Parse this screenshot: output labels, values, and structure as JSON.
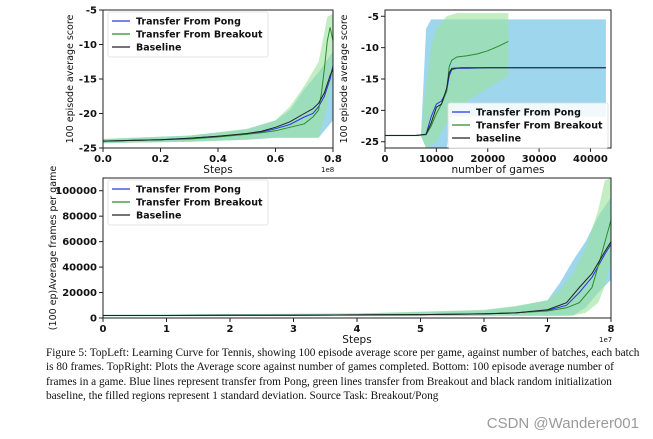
{
  "caption": "Figure 5: TopLeft: Learning Curve for Tennis, showing 100 episode average score per game, against number of batches, each batch is 80 frames. TopRight: Plots the Average score against number of games completed. Bottom: 100 episode average number of frames in a game. Blue lines represent transfer from Pong, green lines transfer from Breakout and black random initialization baseline, the filled regions represent 1 standard deviation. Source Task: Breakout/Pong",
  "watermark": "CSDN @Wanderer001",
  "colors": {
    "pong": "#2b36e0",
    "breakout": "#2c8a2c",
    "baseline": "#222222",
    "pong_band": "#7ec8e8",
    "breakout_band": "#9be39b"
  },
  "chart_data": [
    {
      "id": "top-left",
      "type": "line",
      "xlabel": "Steps",
      "ylabel": "100 episode average score",
      "x_multiplier": "1e8",
      "xlim": [
        0.0,
        0.8
      ],
      "ylim": [
        -25,
        -5
      ],
      "xticks": [
        "0.0",
        "0.2",
        "0.4",
        "0.6",
        "0.8"
      ],
      "yticks": [
        "-25",
        "-20",
        "-15",
        "-10",
        "-5"
      ],
      "legend_position": "top-left",
      "series": [
        {
          "name": "Transfer From Pong",
          "key": "pong",
          "x": [
            0.0,
            0.1,
            0.2,
            0.3,
            0.4,
            0.5,
            0.55,
            0.6,
            0.65,
            0.7,
            0.73,
            0.75,
            0.77,
            0.79,
            0.8
          ],
          "y": [
            -24.0,
            -23.9,
            -23.8,
            -23.6,
            -23.3,
            -23.0,
            -22.7,
            -22.2,
            -21.6,
            -20.5,
            -20.0,
            -19.0,
            -17.5,
            -15.0,
            -13.0
          ]
        },
        {
          "name": "Transfer From Breakout",
          "key": "breakout",
          "x": [
            0.0,
            0.1,
            0.2,
            0.3,
            0.4,
            0.5,
            0.55,
            0.6,
            0.65,
            0.7,
            0.73,
            0.75,
            0.76,
            0.77,
            0.78,
            0.79,
            0.8
          ],
          "y": [
            -24.0,
            -23.9,
            -23.8,
            -23.7,
            -23.4,
            -23.0,
            -22.8,
            -22.5,
            -22.0,
            -21.5,
            -20.5,
            -19.5,
            -17.0,
            -13.5,
            -9.5,
            -7.5,
            -9.5
          ]
        },
        {
          "name": "Baseline",
          "key": "baseline",
          "x": [
            0.0,
            0.1,
            0.2,
            0.3,
            0.4,
            0.5,
            0.55,
            0.6,
            0.65,
            0.7,
            0.73,
            0.75,
            0.77,
            0.79,
            0.8
          ],
          "y": [
            -24.0,
            -23.9,
            -23.8,
            -23.6,
            -23.3,
            -22.9,
            -22.6,
            -22.0,
            -21.2,
            -20.0,
            -19.3,
            -18.5,
            -17.0,
            -14.5,
            -13.5
          ]
        }
      ],
      "bands": [
        {
          "key": "pong",
          "x": [
            0.0,
            0.3,
            0.5,
            0.6,
            0.65,
            0.7,
            0.75,
            0.8
          ],
          "lower": [
            -24.3,
            -24.1,
            -23.8,
            -23.5,
            -23.5,
            -23.5,
            -23.5,
            -21.0
          ],
          "upper": [
            -23.7,
            -23.2,
            -22.3,
            -21.0,
            -19.5,
            -16.5,
            -14.0,
            -11.0
          ]
        },
        {
          "key": "breakout",
          "x": [
            0.0,
            0.3,
            0.5,
            0.6,
            0.65,
            0.7,
            0.75,
            0.78,
            0.8
          ],
          "lower": [
            -24.3,
            -24.1,
            -23.8,
            -23.5,
            -23.5,
            -23.5,
            -23.5,
            -19.0,
            -14.0
          ],
          "upper": [
            -23.7,
            -23.2,
            -22.2,
            -21.0,
            -19.0,
            -16.0,
            -12.5,
            -6.0,
            -5.5
          ]
        }
      ]
    },
    {
      "id": "top-right",
      "type": "line",
      "xlabel": "number of games",
      "ylabel": "100 episode average score",
      "xlim": [
        0,
        44000
      ],
      "ylim": [
        -26,
        -4
      ],
      "xticks": [
        "0",
        "10000",
        "20000",
        "30000",
        "40000"
      ],
      "yticks": [
        "-25",
        "-20",
        "-15",
        "-10",
        "-5"
      ],
      "legend_position": "bottom-right",
      "series": [
        {
          "name": "Transfer From Pong",
          "key": "pong",
          "x": [
            0,
            6000,
            8000,
            9000,
            10000,
            11000,
            12000,
            12500,
            13000,
            14000,
            16000,
            20000,
            30000,
            40000,
            43000
          ],
          "y": [
            -24.0,
            -24.0,
            -23.8,
            -21.0,
            -19.0,
            -18.5,
            -17.0,
            -14.5,
            -13.5,
            -13.3,
            -13.3,
            -13.2,
            -13.2,
            -13.2,
            -13.2
          ]
        },
        {
          "name": "Transfer From Breakout",
          "key": "breakout",
          "x": [
            0,
            6000,
            8000,
            9000,
            10000,
            11000,
            12000,
            12500,
            13000,
            14000,
            16000,
            18000,
            20000,
            22000,
            24000
          ],
          "y": [
            -24.0,
            -24.0,
            -23.9,
            -22.5,
            -20.5,
            -19.0,
            -17.0,
            -13.0,
            -12.0,
            -11.5,
            -11.3,
            -11.0,
            -10.5,
            -9.8,
            -9.0
          ]
        },
        {
          "name": "baseline",
          "key": "baseline",
          "x": [
            0,
            6000,
            8000,
            9000,
            10000,
            11000,
            12000,
            12500,
            13000,
            15000,
            20000,
            30000,
            40000,
            43000
          ],
          "y": [
            -24.0,
            -24.0,
            -23.8,
            -22.0,
            -19.5,
            -19.0,
            -16.5,
            -14.0,
            -13.3,
            -13.2,
            -13.2,
            -13.2,
            -13.2,
            -13.2
          ]
        }
      ],
      "bands": [
        {
          "key": "pong",
          "x": [
            0,
            7000,
            8000,
            9000,
            10000,
            11000,
            12000,
            13000,
            43000
          ],
          "lower": [
            -24.1,
            -24.1,
            -26.0,
            -26.0,
            -26.0,
            -26.0,
            -26.0,
            -21.0,
            -21.0
          ],
          "upper": [
            -23.9,
            -23.9,
            -7.0,
            -5.5,
            -5.5,
            -5.5,
            -5.5,
            -5.5,
            -5.5
          ]
        },
        {
          "key": "breakout",
          "x": [
            0,
            7000,
            8000,
            9000,
            10000,
            12000,
            14000,
            16000,
            18000,
            20000,
            22000,
            24000
          ],
          "lower": [
            -24.1,
            -24.1,
            -26.0,
            -25.5,
            -25.0,
            -22.0,
            -20.0,
            -18.5,
            -17.5,
            -16.5,
            -15.5,
            -14.5
          ],
          "upper": [
            -23.9,
            -23.9,
            -16.0,
            -10.0,
            -7.0,
            -5.0,
            -4.5,
            -4.5,
            -4.5,
            -4.5,
            -4.5,
            -4.5
          ]
        }
      ]
    },
    {
      "id": "bottom",
      "type": "line",
      "xlabel": "Steps",
      "ylabel": "(100 ep)Average frames per game",
      "x_multiplier": "1e7",
      "xlim": [
        0,
        8
      ],
      "ylim": [
        0,
        110000
      ],
      "xticks": [
        "0",
        "1",
        "2",
        "3",
        "4",
        "5",
        "6",
        "7",
        "8"
      ],
      "yticks": [
        "0",
        "20000",
        "40000",
        "60000",
        "80000",
        "100000"
      ],
      "legend_position": "top-left",
      "series": [
        {
          "name": "Transfer From Pong",
          "key": "pong",
          "x": [
            0,
            1,
            2,
            3,
            4,
            5,
            6,
            6.5,
            7.0,
            7.3,
            7.5,
            7.7,
            7.9,
            8.0
          ],
          "y": [
            2000,
            2000,
            2100,
            2200,
            2400,
            2700,
            3200,
            4000,
            6000,
            10000,
            20000,
            32000,
            50000,
            58000
          ]
        },
        {
          "name": "Transfer From Breakout",
          "key": "breakout",
          "x": [
            0,
            1,
            2,
            3,
            4,
            5,
            6,
            6.5,
            7.0,
            7.3,
            7.5,
            7.7,
            7.85,
            8.0
          ],
          "y": [
            2000,
            2000,
            2100,
            2200,
            2400,
            2700,
            3300,
            4200,
            5500,
            8000,
            12000,
            24000,
            50000,
            77000
          ]
        },
        {
          "name": "Baseline",
          "key": "baseline",
          "x": [
            0,
            1,
            2,
            3,
            4,
            5,
            6,
            6.5,
            7.0,
            7.3,
            7.5,
            7.7,
            7.9,
            8.0
          ],
          "y": [
            2000,
            2000,
            2100,
            2200,
            2400,
            2700,
            3200,
            4000,
            6500,
            12000,
            24000,
            35000,
            52000,
            60000
          ]
        }
      ],
      "bands": [
        {
          "key": "pong",
          "x": [
            0,
            4,
            6,
            6.5,
            7.0,
            7.2,
            7.4,
            7.6,
            7.8,
            8.0
          ],
          "lower": [
            1500,
            1600,
            1800,
            1800,
            1800,
            1800,
            2000,
            8000,
            20000,
            30000
          ],
          "upper": [
            2500,
            3500,
            6000,
            9000,
            14000,
            28000,
            45000,
            60000,
            80000,
            95000
          ]
        },
        {
          "key": "breakout",
          "x": [
            0,
            4,
            6,
            6.5,
            7.0,
            7.2,
            7.4,
            7.6,
            7.8,
            7.9,
            8.0
          ],
          "lower": [
            1500,
            1600,
            1800,
            1800,
            1800,
            1800,
            1900,
            4000,
            12000,
            25000,
            45000
          ],
          "upper": [
            2500,
            3500,
            6500,
            9500,
            14000,
            22000,
            35000,
            55000,
            85000,
            108000,
            110000
          ]
        }
      ]
    }
  ]
}
